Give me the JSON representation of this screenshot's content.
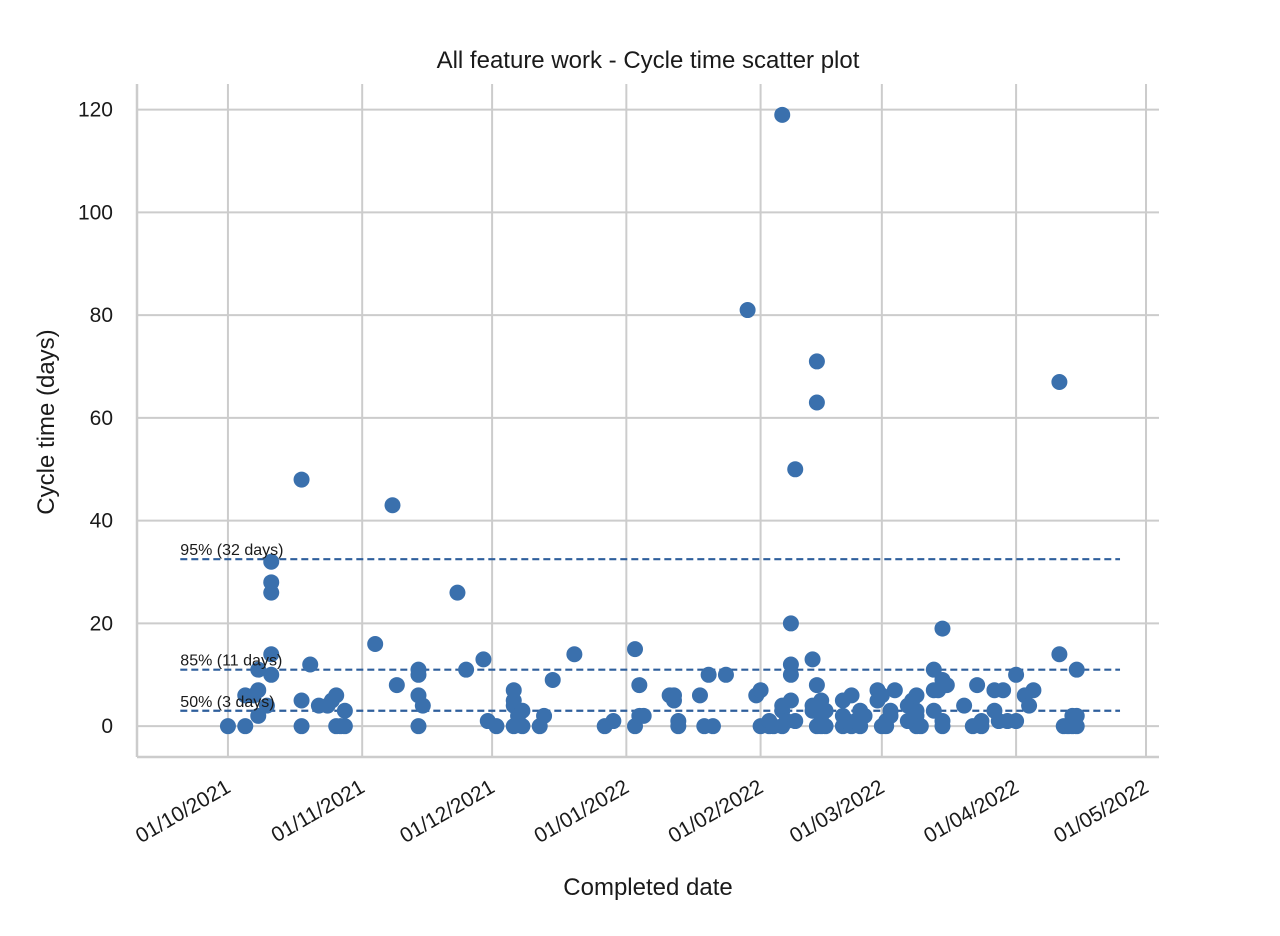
{
  "chart_data": {
    "type": "scatter",
    "title": "All feature work - Cycle time scatter plot",
    "xlabel": "Completed date",
    "ylabel": "Cycle time (days)",
    "x_format": "dd/mm/yyyy",
    "xlim": [
      "2021-09-10",
      "2022-05-04"
    ],
    "ylim": [
      -6,
      125
    ],
    "grid": true,
    "x_ticks": [
      {
        "date": "2021-10-01",
        "label": "01/10/2021"
      },
      {
        "date": "2021-11-01",
        "label": "01/11/2021"
      },
      {
        "date": "2021-12-01",
        "label": "01/12/2021"
      },
      {
        "date": "2022-01-01",
        "label": "01/01/2022"
      },
      {
        "date": "2022-02-01",
        "label": "01/02/2022"
      },
      {
        "date": "2022-03-01",
        "label": "01/03/2022"
      },
      {
        "date": "2022-04-01",
        "label": "01/04/2022"
      },
      {
        "date": "2022-05-01",
        "label": "01/05/2022"
      }
    ],
    "y_ticks": [
      0,
      20,
      40,
      60,
      80,
      100,
      120
    ],
    "percentiles": [
      {
        "label": "95% (32 days)",
        "value": 32.5
      },
      {
        "label": "85% (11 days)",
        "value": 11
      },
      {
        "label": "50% (3 days)",
        "value": 3
      }
    ],
    "percentile_span": [
      "2021-09-20",
      "2022-04-25"
    ],
    "series": [
      {
        "name": "Cycle time",
        "color": "#3a70ad",
        "points": [
          [
            "2021-10-01",
            0
          ],
          [
            "2021-10-05",
            0
          ],
          [
            "2021-10-05",
            6
          ],
          [
            "2021-10-07",
            6
          ],
          [
            "2021-10-08",
            2
          ],
          [
            "2021-10-08",
            7
          ],
          [
            "2021-10-08",
            11
          ],
          [
            "2021-10-10",
            4
          ],
          [
            "2021-10-11",
            10
          ],
          [
            "2021-10-11",
            14
          ],
          [
            "2021-10-11",
            26
          ],
          [
            "2021-10-11",
            28
          ],
          [
            "2021-10-11",
            32
          ],
          [
            "2021-10-18",
            0
          ],
          [
            "2021-10-18",
            5
          ],
          [
            "2021-10-18",
            48
          ],
          [
            "2021-10-20",
            12
          ],
          [
            "2021-10-22",
            4
          ],
          [
            "2021-10-24",
            4
          ],
          [
            "2021-10-25",
            5
          ],
          [
            "2021-10-26",
            0
          ],
          [
            "2021-10-26",
            6
          ],
          [
            "2021-10-27",
            0
          ],
          [
            "2021-10-28",
            0
          ],
          [
            "2021-10-28",
            3
          ],
          [
            "2021-11-04",
            16
          ],
          [
            "2021-11-08",
            43
          ],
          [
            "2021-11-09",
            8
          ],
          [
            "2021-11-14",
            0
          ],
          [
            "2021-11-14",
            6
          ],
          [
            "2021-11-14",
            10
          ],
          [
            "2021-11-14",
            11
          ],
          [
            "2021-11-15",
            4
          ],
          [
            "2021-11-23",
            26
          ],
          [
            "2021-11-25",
            11
          ],
          [
            "2021-11-29",
            13
          ],
          [
            "2021-11-30",
            1
          ],
          [
            "2021-12-02",
            0
          ],
          [
            "2021-12-06",
            0
          ],
          [
            "2021-12-06",
            4
          ],
          [
            "2021-12-06",
            5
          ],
          [
            "2021-12-06",
            7
          ],
          [
            "2021-12-07",
            2
          ],
          [
            "2021-12-08",
            0
          ],
          [
            "2021-12-08",
            3
          ],
          [
            "2021-12-12",
            0
          ],
          [
            "2021-12-13",
            2
          ],
          [
            "2021-12-15",
            9
          ],
          [
            "2021-12-20",
            14
          ],
          [
            "2021-12-27",
            0
          ],
          [
            "2021-12-29",
            1
          ],
          [
            "2022-01-03",
            0
          ],
          [
            "2022-01-03",
            15
          ],
          [
            "2022-01-04",
            2
          ],
          [
            "2022-01-04",
            8
          ],
          [
            "2022-01-05",
            2
          ],
          [
            "2022-01-11",
            6
          ],
          [
            "2022-01-12",
            5
          ],
          [
            "2022-01-12",
            6
          ],
          [
            "2022-01-13",
            0
          ],
          [
            "2022-01-13",
            1
          ],
          [
            "2022-01-18",
            6
          ],
          [
            "2022-01-19",
            0
          ],
          [
            "2022-01-20",
            10
          ],
          [
            "2022-01-21",
            0
          ],
          [
            "2022-01-24",
            10
          ],
          [
            "2022-01-29",
            81
          ],
          [
            "2022-01-31",
            6
          ],
          [
            "2022-02-01",
            0
          ],
          [
            "2022-02-01",
            7
          ],
          [
            "2022-02-03",
            0
          ],
          [
            "2022-02-03",
            1
          ],
          [
            "2022-02-04",
            0
          ],
          [
            "2022-02-06",
            119
          ],
          [
            "2022-02-06",
            0
          ],
          [
            "2022-02-06",
            3
          ],
          [
            "2022-02-06",
            4
          ],
          [
            "2022-02-07",
            1
          ],
          [
            "2022-02-08",
            5
          ],
          [
            "2022-02-08",
            10
          ],
          [
            "2022-02-08",
            12
          ],
          [
            "2022-02-08",
            20
          ],
          [
            "2022-02-09",
            50
          ],
          [
            "2022-02-09",
            1
          ],
          [
            "2022-02-13",
            13
          ],
          [
            "2022-02-13",
            3
          ],
          [
            "2022-02-13",
            4
          ],
          [
            "2022-02-14",
            0
          ],
          [
            "2022-02-14",
            8
          ],
          [
            "2022-02-14",
            63
          ],
          [
            "2022-02-14",
            71
          ],
          [
            "2022-02-15",
            0
          ],
          [
            "2022-02-15",
            2
          ],
          [
            "2022-02-15",
            5
          ],
          [
            "2022-02-16",
            0
          ],
          [
            "2022-02-16",
            3
          ],
          [
            "2022-02-20",
            0
          ],
          [
            "2022-02-20",
            2
          ],
          [
            "2022-02-20",
            5
          ],
          [
            "2022-02-21",
            1
          ],
          [
            "2022-02-22",
            0
          ],
          [
            "2022-02-22",
            6
          ],
          [
            "2022-02-23",
            1
          ],
          [
            "2022-02-24",
            0
          ],
          [
            "2022-02-24",
            3
          ],
          [
            "2022-02-25",
            2
          ],
          [
            "2022-02-28",
            5
          ],
          [
            "2022-02-28",
            7
          ],
          [
            "2022-03-01",
            0
          ],
          [
            "2022-03-01",
            6
          ],
          [
            "2022-03-02",
            0
          ],
          [
            "2022-03-02",
            1
          ],
          [
            "2022-03-03",
            2
          ],
          [
            "2022-03-03",
            3
          ],
          [
            "2022-03-04",
            7
          ],
          [
            "2022-03-07",
            1
          ],
          [
            "2022-03-07",
            4
          ],
          [
            "2022-03-08",
            5
          ],
          [
            "2022-03-09",
            0
          ],
          [
            "2022-03-09",
            2
          ],
          [
            "2022-03-09",
            3
          ],
          [
            "2022-03-09",
            6
          ],
          [
            "2022-03-10",
            0
          ],
          [
            "2022-03-13",
            3
          ],
          [
            "2022-03-13",
            7
          ],
          [
            "2022-03-13",
            11
          ],
          [
            "2022-03-14",
            7
          ],
          [
            "2022-03-15",
            0
          ],
          [
            "2022-03-15",
            1
          ],
          [
            "2022-03-15",
            9
          ],
          [
            "2022-03-15",
            19
          ],
          [
            "2022-03-16",
            8
          ],
          [
            "2022-03-20",
            4
          ],
          [
            "2022-03-22",
            0
          ],
          [
            "2022-03-23",
            8
          ],
          [
            "2022-03-24",
            0
          ],
          [
            "2022-03-24",
            1
          ],
          [
            "2022-03-27",
            3
          ],
          [
            "2022-03-27",
            7
          ],
          [
            "2022-03-28",
            1
          ],
          [
            "2022-03-29",
            7
          ],
          [
            "2022-03-30",
            1
          ],
          [
            "2022-04-01",
            1
          ],
          [
            "2022-04-01",
            10
          ],
          [
            "2022-04-03",
            6
          ],
          [
            "2022-04-04",
            4
          ],
          [
            "2022-04-05",
            7
          ],
          [
            "2022-04-11",
            14
          ],
          [
            "2022-04-11",
            67
          ],
          [
            "2022-04-12",
            0
          ],
          [
            "2022-04-13",
            0
          ],
          [
            "2022-04-14",
            0
          ],
          [
            "2022-04-14",
            1
          ],
          [
            "2022-04-14",
            2
          ],
          [
            "2022-04-15",
            0
          ],
          [
            "2022-04-15",
            2
          ],
          [
            "2022-04-15",
            11
          ]
        ]
      }
    ]
  }
}
